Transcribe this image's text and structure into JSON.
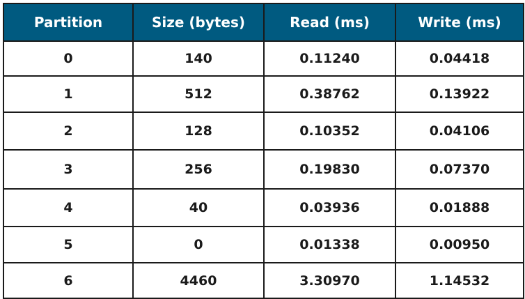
{
  "colors": {
    "header_bg": "#005a80",
    "header_text": "#ffffff",
    "border": "#1a1a1a"
  },
  "table": {
    "headers": [
      "Partition",
      "Size (bytes)",
      "Read (ms)",
      "Write (ms)"
    ],
    "rows": [
      [
        "0",
        "140",
        "0.11240",
        "0.04418"
      ],
      [
        "1",
        "512",
        "0.38762",
        "0.13922"
      ],
      [
        "2",
        "128",
        "0.10352",
        "0.04106"
      ],
      [
        "3",
        "256",
        "0.19830",
        "0.07370"
      ],
      [
        "4",
        "40",
        "0.03936",
        "0.01888"
      ],
      [
        "5",
        "0",
        "0.01338",
        "0.00950"
      ],
      [
        "6",
        "4460",
        "3.30970",
        "1.14532"
      ]
    ]
  }
}
